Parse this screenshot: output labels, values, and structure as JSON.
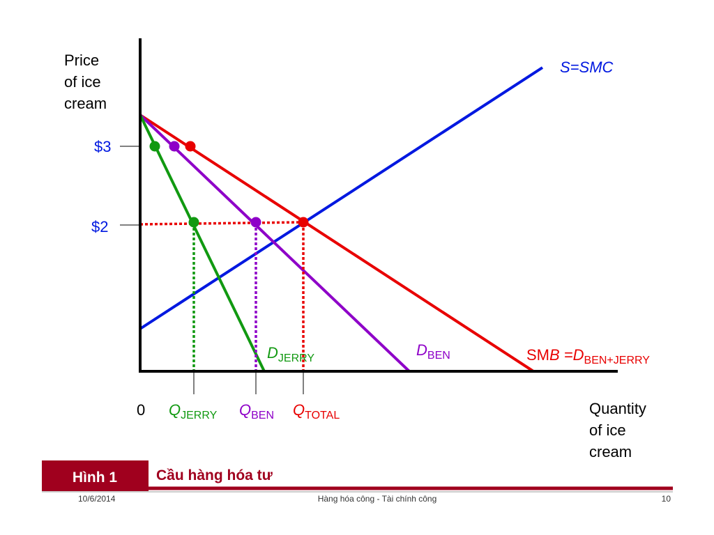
{
  "diagram": {
    "y_axis_label": [
      "Price",
      "of ice",
      "cream"
    ],
    "x_axis_label": [
      "Quantity",
      "of ice",
      "cream"
    ],
    "price_labels": [
      "$3",
      "$2"
    ],
    "origin": "0",
    "supply_label": "S=SMC",
    "quantity_labels": [
      {
        "main": "Q",
        "sub": "JERRY"
      },
      {
        "main": "Q",
        "sub": "BEN"
      },
      {
        "main": "Q",
        "sub": "TOTAL"
      }
    ],
    "demand_labels": [
      {
        "main": "D",
        "sub": "JERRY"
      },
      {
        "main": "D",
        "sub": "BEN"
      },
      {
        "prefix": "SM",
        "main": "B =D",
        "sub": "BEN+JERRY"
      }
    ]
  },
  "caption": {
    "figure": "Hình 1",
    "title": "Cầu hàng hóa tư"
  },
  "footer": {
    "date": "10/6/2014",
    "center": "Hàng hóa công - Tài chính công",
    "page": "10"
  }
}
